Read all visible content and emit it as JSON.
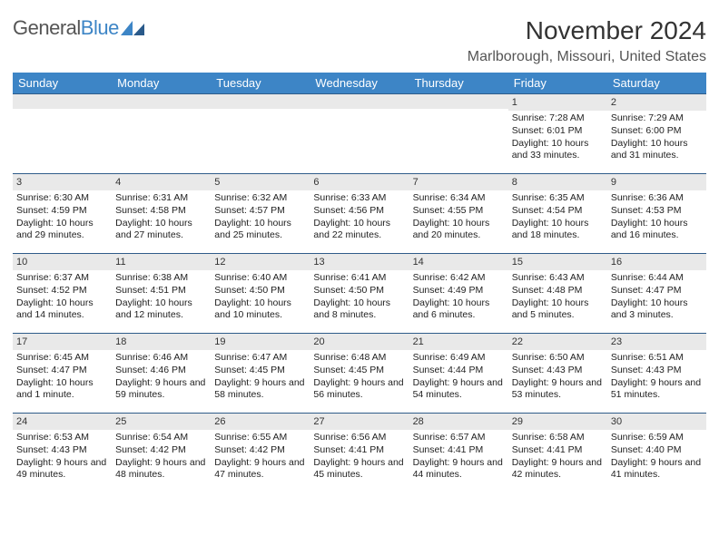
{
  "logo": {
    "text1": "General",
    "text2": "Blue"
  },
  "title": "November 2024",
  "location": "Marlborough, Missouri, United States",
  "weekdays": [
    "Sunday",
    "Monday",
    "Tuesday",
    "Wednesday",
    "Thursday",
    "Friday",
    "Saturday"
  ],
  "colors": {
    "header_bg": "#3d85c6",
    "header_text": "#ffffff",
    "daynum_bg": "#e9e9e9",
    "day_border_top": "#2f5c8a",
    "body_text": "#222222"
  },
  "fonts": {
    "title_size_pt": 21,
    "location_size_pt": 12,
    "weekday_size_pt": 10,
    "cell_size_pt": 8
  },
  "grid": [
    [
      {
        "n": "",
        "sunrise": "",
        "sunset": "",
        "daylight": ""
      },
      {
        "n": "",
        "sunrise": "",
        "sunset": "",
        "daylight": ""
      },
      {
        "n": "",
        "sunrise": "",
        "sunset": "",
        "daylight": ""
      },
      {
        "n": "",
        "sunrise": "",
        "sunset": "",
        "daylight": ""
      },
      {
        "n": "",
        "sunrise": "",
        "sunset": "",
        "daylight": ""
      },
      {
        "n": "1",
        "sunrise": "Sunrise: 7:28 AM",
        "sunset": "Sunset: 6:01 PM",
        "daylight": "Daylight: 10 hours and 33 minutes."
      },
      {
        "n": "2",
        "sunrise": "Sunrise: 7:29 AM",
        "sunset": "Sunset: 6:00 PM",
        "daylight": "Daylight: 10 hours and 31 minutes."
      }
    ],
    [
      {
        "n": "3",
        "sunrise": "Sunrise: 6:30 AM",
        "sunset": "Sunset: 4:59 PM",
        "daylight": "Daylight: 10 hours and 29 minutes."
      },
      {
        "n": "4",
        "sunrise": "Sunrise: 6:31 AM",
        "sunset": "Sunset: 4:58 PM",
        "daylight": "Daylight: 10 hours and 27 minutes."
      },
      {
        "n": "5",
        "sunrise": "Sunrise: 6:32 AM",
        "sunset": "Sunset: 4:57 PM",
        "daylight": "Daylight: 10 hours and 25 minutes."
      },
      {
        "n": "6",
        "sunrise": "Sunrise: 6:33 AM",
        "sunset": "Sunset: 4:56 PM",
        "daylight": "Daylight: 10 hours and 22 minutes."
      },
      {
        "n": "7",
        "sunrise": "Sunrise: 6:34 AM",
        "sunset": "Sunset: 4:55 PM",
        "daylight": "Daylight: 10 hours and 20 minutes."
      },
      {
        "n": "8",
        "sunrise": "Sunrise: 6:35 AM",
        "sunset": "Sunset: 4:54 PM",
        "daylight": "Daylight: 10 hours and 18 minutes."
      },
      {
        "n": "9",
        "sunrise": "Sunrise: 6:36 AM",
        "sunset": "Sunset: 4:53 PM",
        "daylight": "Daylight: 10 hours and 16 minutes."
      }
    ],
    [
      {
        "n": "10",
        "sunrise": "Sunrise: 6:37 AM",
        "sunset": "Sunset: 4:52 PM",
        "daylight": "Daylight: 10 hours and 14 minutes."
      },
      {
        "n": "11",
        "sunrise": "Sunrise: 6:38 AM",
        "sunset": "Sunset: 4:51 PM",
        "daylight": "Daylight: 10 hours and 12 minutes."
      },
      {
        "n": "12",
        "sunrise": "Sunrise: 6:40 AM",
        "sunset": "Sunset: 4:50 PM",
        "daylight": "Daylight: 10 hours and 10 minutes."
      },
      {
        "n": "13",
        "sunrise": "Sunrise: 6:41 AM",
        "sunset": "Sunset: 4:50 PM",
        "daylight": "Daylight: 10 hours and 8 minutes."
      },
      {
        "n": "14",
        "sunrise": "Sunrise: 6:42 AM",
        "sunset": "Sunset: 4:49 PM",
        "daylight": "Daylight: 10 hours and 6 minutes."
      },
      {
        "n": "15",
        "sunrise": "Sunrise: 6:43 AM",
        "sunset": "Sunset: 4:48 PM",
        "daylight": "Daylight: 10 hours and 5 minutes."
      },
      {
        "n": "16",
        "sunrise": "Sunrise: 6:44 AM",
        "sunset": "Sunset: 4:47 PM",
        "daylight": "Daylight: 10 hours and 3 minutes."
      }
    ],
    [
      {
        "n": "17",
        "sunrise": "Sunrise: 6:45 AM",
        "sunset": "Sunset: 4:47 PM",
        "daylight": "Daylight: 10 hours and 1 minute."
      },
      {
        "n": "18",
        "sunrise": "Sunrise: 6:46 AM",
        "sunset": "Sunset: 4:46 PM",
        "daylight": "Daylight: 9 hours and 59 minutes."
      },
      {
        "n": "19",
        "sunrise": "Sunrise: 6:47 AM",
        "sunset": "Sunset: 4:45 PM",
        "daylight": "Daylight: 9 hours and 58 minutes."
      },
      {
        "n": "20",
        "sunrise": "Sunrise: 6:48 AM",
        "sunset": "Sunset: 4:45 PM",
        "daylight": "Daylight: 9 hours and 56 minutes."
      },
      {
        "n": "21",
        "sunrise": "Sunrise: 6:49 AM",
        "sunset": "Sunset: 4:44 PM",
        "daylight": "Daylight: 9 hours and 54 minutes."
      },
      {
        "n": "22",
        "sunrise": "Sunrise: 6:50 AM",
        "sunset": "Sunset: 4:43 PM",
        "daylight": "Daylight: 9 hours and 53 minutes."
      },
      {
        "n": "23",
        "sunrise": "Sunrise: 6:51 AM",
        "sunset": "Sunset: 4:43 PM",
        "daylight": "Daylight: 9 hours and 51 minutes."
      }
    ],
    [
      {
        "n": "24",
        "sunrise": "Sunrise: 6:53 AM",
        "sunset": "Sunset: 4:43 PM",
        "daylight": "Daylight: 9 hours and 49 minutes."
      },
      {
        "n": "25",
        "sunrise": "Sunrise: 6:54 AM",
        "sunset": "Sunset: 4:42 PM",
        "daylight": "Daylight: 9 hours and 48 minutes."
      },
      {
        "n": "26",
        "sunrise": "Sunrise: 6:55 AM",
        "sunset": "Sunset: 4:42 PM",
        "daylight": "Daylight: 9 hours and 47 minutes."
      },
      {
        "n": "27",
        "sunrise": "Sunrise: 6:56 AM",
        "sunset": "Sunset: 4:41 PM",
        "daylight": "Daylight: 9 hours and 45 minutes."
      },
      {
        "n": "28",
        "sunrise": "Sunrise: 6:57 AM",
        "sunset": "Sunset: 4:41 PM",
        "daylight": "Daylight: 9 hours and 44 minutes."
      },
      {
        "n": "29",
        "sunrise": "Sunrise: 6:58 AM",
        "sunset": "Sunset: 4:41 PM",
        "daylight": "Daylight: 9 hours and 42 minutes."
      },
      {
        "n": "30",
        "sunrise": "Sunrise: 6:59 AM",
        "sunset": "Sunset: 4:40 PM",
        "daylight": "Daylight: 9 hours and 41 minutes."
      }
    ]
  ]
}
